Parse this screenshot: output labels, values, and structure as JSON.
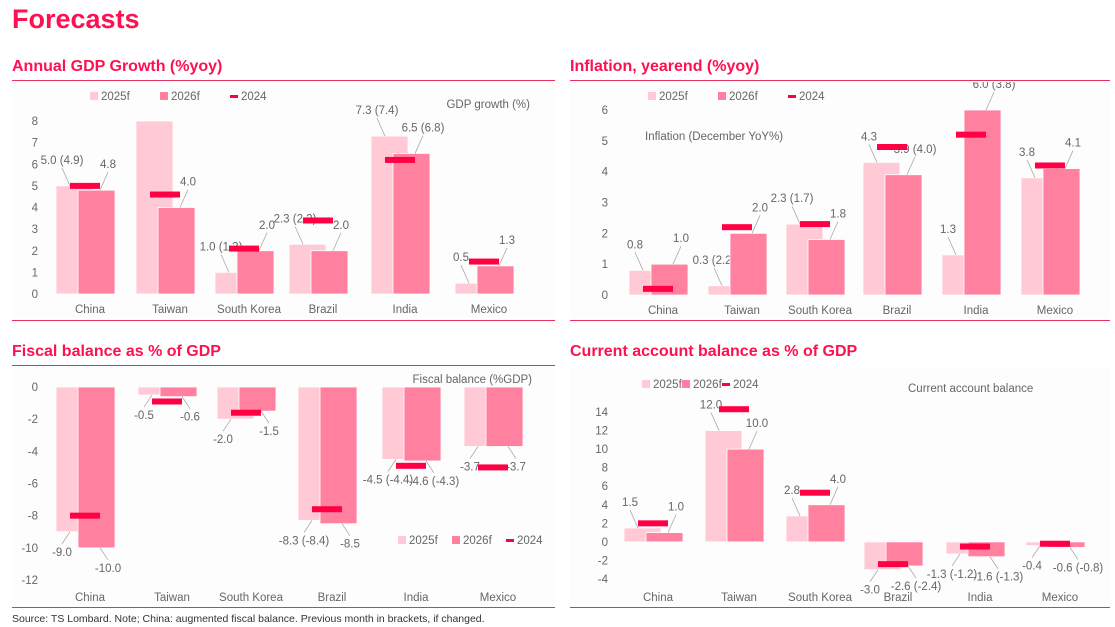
{
  "page_title": "Forecasts",
  "source": "Source: TS Lombard. Note; China: augmented fiscal balance. Previous month in brackets, if changed.",
  "colors": {
    "title": "#ff1050",
    "s2025f": "#ffc9d6",
    "s2026f": "#ff809f",
    "s2024": "#ff0044"
  },
  "chart_data": [
    {
      "type": "bar",
      "title": "Annual GDP Growth (%yoy)",
      "annotation": "GDP growth (%)",
      "categories": [
        "China",
        "Taiwan",
        "South Korea",
        "Brazil",
        "India",
        "Mexico"
      ],
      "ylim": [
        0,
        8
      ],
      "yticks": [
        "0",
        "1",
        "2",
        "3",
        "4",
        "5",
        "6",
        "7",
        "8"
      ],
      "legend": [
        "2025f",
        "2026f",
        "2024"
      ],
      "series": [
        {
          "name": "2025f",
          "values": [
            5.0,
            8.0,
            1.0,
            2.3,
            7.3,
            0.5
          ],
          "labels": [
            "5.0 (4.9)",
            "",
            "1.0 (1.2)",
            "2.3 (2.2)",
            "7.3 (7.4)",
            "0.5"
          ]
        },
        {
          "name": "2026f",
          "values": [
            4.8,
            4.0,
            2.0,
            2.0,
            6.5,
            1.3
          ],
          "labels": [
            "4.8",
            "4.0",
            "2.0",
            "2.0",
            "6.5 (6.8)",
            "1.3"
          ]
        },
        {
          "name": "2024",
          "values": [
            5.0,
            4.6,
            2.1,
            3.4,
            6.2,
            1.5
          ]
        }
      ]
    },
    {
      "type": "bar",
      "title": "Inflation, yearend (%yoy)",
      "annotation": "Inflation (December YoY%)",
      "categories": [
        "China",
        "Taiwan",
        "South Korea",
        "Brazil",
        "India",
        "Mexico"
      ],
      "ylim": [
        0,
        6
      ],
      "yticks": [
        "0",
        "1",
        "2",
        "3",
        "4",
        "5",
        "6"
      ],
      "legend": [
        "2025f",
        "2026f",
        "2024"
      ],
      "series": [
        {
          "name": "2025f",
          "values": [
            0.8,
            0.3,
            2.3,
            4.3,
            1.3,
            3.8
          ],
          "labels": [
            "0.8",
            "0.3 (2.2)",
            "2.3 (1.7)",
            "4.3",
            "1.3",
            "3.8"
          ]
        },
        {
          "name": "2026f",
          "values": [
            1.0,
            2.0,
            1.8,
            3.9,
            6.0,
            4.1
          ],
          "labels": [
            "1.0",
            "2.0",
            "1.8",
            "3.9 (4.0)",
            "6.0 (3.8)",
            "4.1"
          ]
        },
        {
          "name": "2024",
          "values": [
            0.2,
            2.2,
            2.3,
            4.8,
            5.2,
            4.2
          ]
        }
      ]
    },
    {
      "type": "bar",
      "title": "Fiscal balance as % of GDP",
      "annotation": "Fiscal balance (%GDP)",
      "categories": [
        "China",
        "Taiwan",
        "South Korea",
        "Brazil",
        "India",
        "Mexico"
      ],
      "ylim": [
        -12,
        0
      ],
      "yticks": [
        "-12",
        "-10",
        "-8",
        "-6",
        "-4",
        "-2",
        "0"
      ],
      "legend": [
        "2025f",
        "2026f",
        "2024"
      ],
      "series": [
        {
          "name": "2025f",
          "values": [
            -9.0,
            -0.5,
            -2.0,
            -8.3,
            -4.5,
            -3.7
          ],
          "labels": [
            "-9.0",
            "-0.5",
            "-2.0",
            "-8.3 (-8.4)",
            "-4.5 (-4.4)",
            "-3.7"
          ]
        },
        {
          "name": "2026f",
          "values": [
            -10.0,
            -0.6,
            -1.5,
            -8.5,
            -4.6,
            -3.7
          ],
          "labels": [
            "-10.0",
            "-0.6",
            "-1.5",
            "-8.5",
            "-4.6 (-4.3)",
            "-3.7"
          ]
        },
        {
          "name": "2024",
          "values": [
            -8.0,
            -0.9,
            -1.6,
            -7.6,
            -4.9,
            -5.0
          ]
        }
      ]
    },
    {
      "type": "bar",
      "title": "Current account balance as % of GDP",
      "annotation": "Current account balance",
      "categories": [
        "China",
        "Taiwan",
        "South Korea",
        "Brazil",
        "India",
        "Mexico"
      ],
      "ylim": [
        -4,
        14
      ],
      "yticks": [
        "-4",
        "-2",
        "0",
        "2",
        "4",
        "6",
        "8",
        "10",
        "12",
        "14"
      ],
      "legend": [
        "2025f",
        "2026f",
        "2024"
      ],
      "series": [
        {
          "name": "2025f",
          "values": [
            1.5,
            12.0,
            2.8,
            -3.0,
            -1.3,
            -0.4
          ],
          "labels": [
            "1.5",
            "12.0",
            "2.8",
            "-3.0",
            "-1.3 (-1.2)",
            "-0.4"
          ]
        },
        {
          "name": "2026f",
          "values": [
            1.0,
            10.0,
            4.0,
            -2.6,
            -1.6,
            -0.6
          ],
          "labels": [
            "1.0",
            "10.0",
            "4.0",
            "-2.6 (-2.4)",
            "-1.6 (-1.3)",
            "-0.6 (-0.8)"
          ]
        },
        {
          "name": "2024",
          "values": [
            2.0,
            14.3,
            5.3,
            -2.4,
            -0.5,
            -0.2
          ]
        }
      ]
    }
  ]
}
